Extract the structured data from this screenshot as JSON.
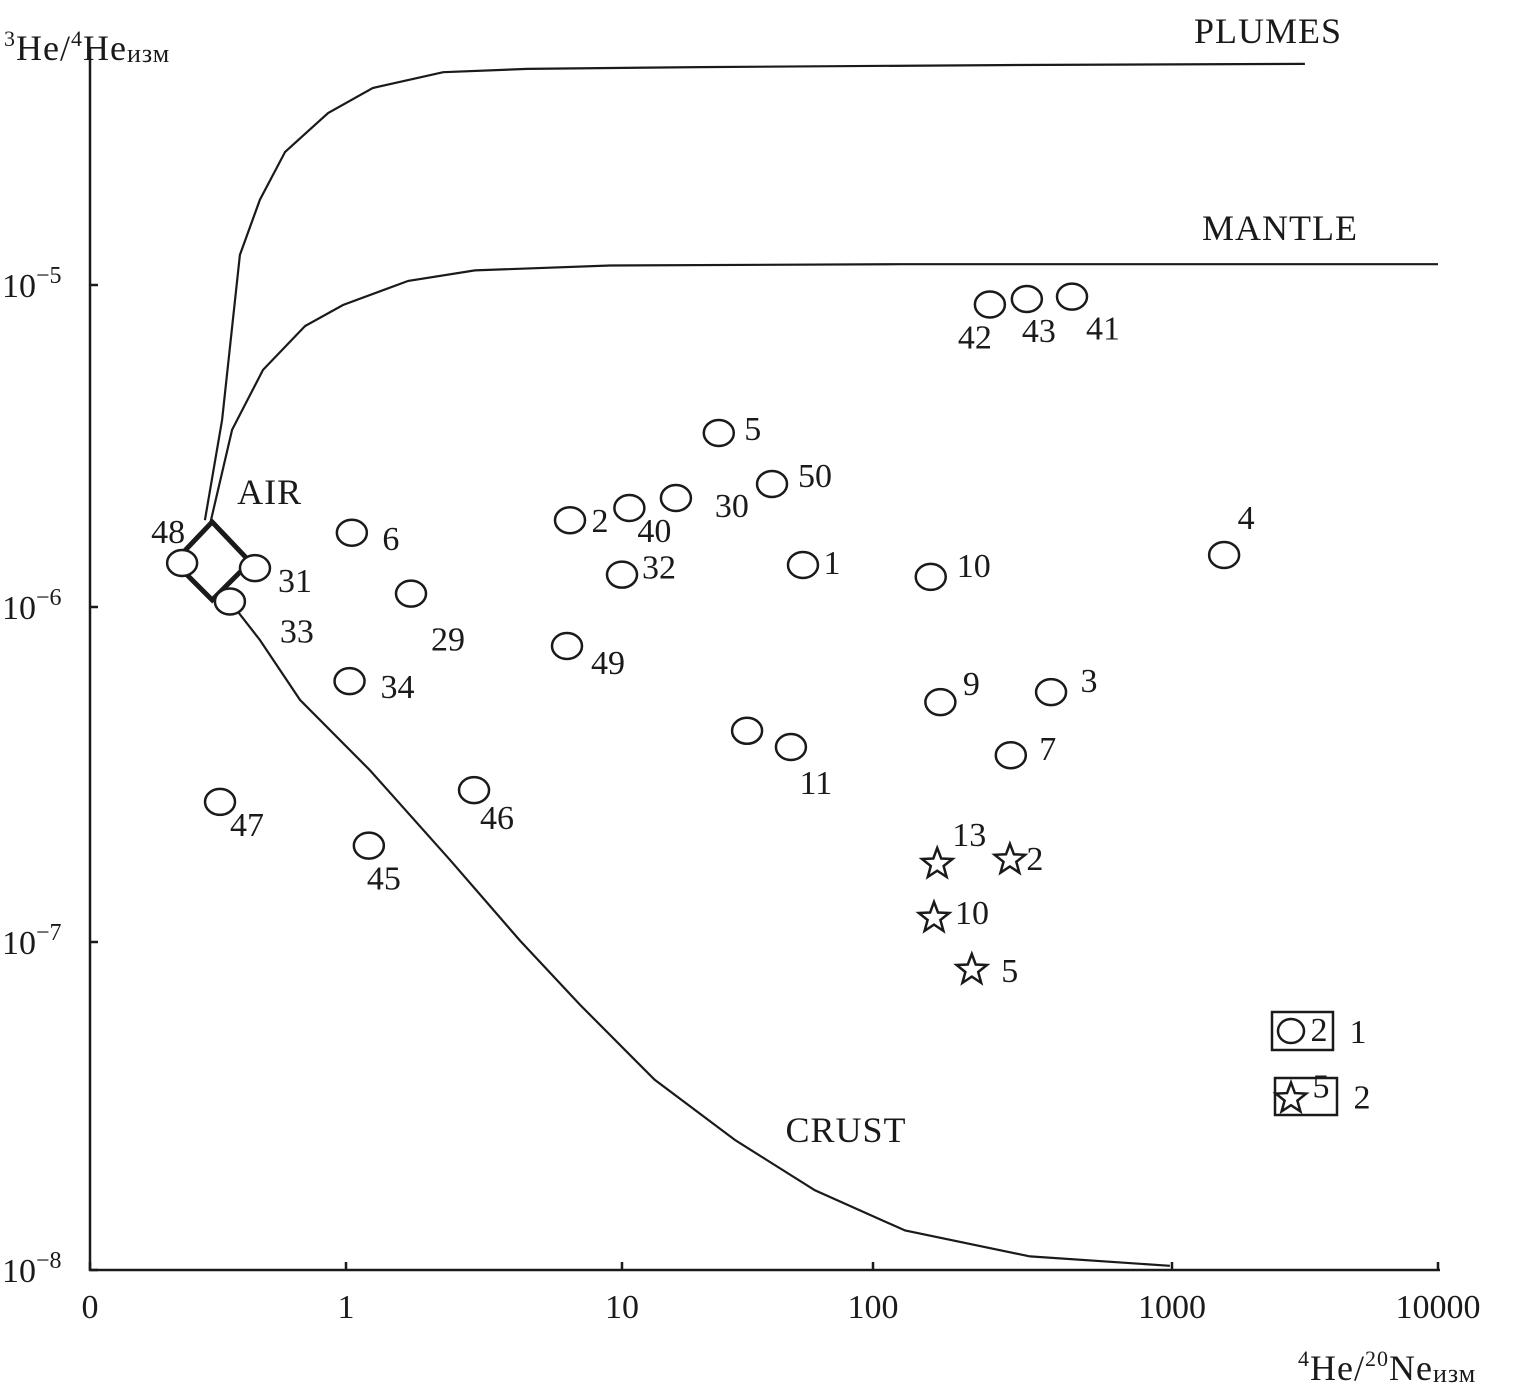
{
  "chart_data": {
    "type": "scatter",
    "title": "",
    "xlabel": {
      "main": "He/",
      "sup1": "4",
      "sup2": "20",
      "main2": "Ne",
      "sub": "изм"
    },
    "ylabel": {
      "sup1": "3",
      "main": "He/",
      "sup2": "4",
      "main2": "He",
      "sub": "изм"
    },
    "x_scale": "log",
    "y_scale": "log",
    "xlim": [
      0.1,
      10000
    ],
    "ylim": [
      1e-08,
      6e-05
    ],
    "x_ticks": [
      {
        "value": 0.1,
        "label": "0"
      },
      {
        "value": 1,
        "label": "1"
      },
      {
        "value": 10,
        "label": "10"
      },
      {
        "value": 100,
        "label": "100"
      },
      {
        "value": 1000,
        "label": "1000"
      },
      {
        "value": 10000,
        "label": "10000"
      }
    ],
    "y_ticks": [
      {
        "value": 1e-05,
        "base": "10",
        "exp": "−5"
      },
      {
        "value": 1e-06,
        "base": "10",
        "exp": "−6"
      },
      {
        "value": 1e-07,
        "base": "10",
        "exp": "−7"
      },
      {
        "value": 1e-08,
        "base": "10",
        "exp": "−8"
      }
    ],
    "grid": false,
    "curves": [
      {
        "name": "PLUMES",
        "points": [
          [
            0.281,
            1.86e-06
          ],
          [
            0.328,
            3.81e-06
          ],
          [
            0.385,
            1.24e-05
          ],
          [
            0.461,
            1.84e-05
          ],
          [
            0.578,
            2.59e-05
          ],
          [
            0.851,
            3.42e-05
          ],
          [
            1.25,
            4.09e-05
          ],
          [
            2.25,
            4.58e-05
          ],
          [
            4.53,
            4.69e-05
          ],
          [
            20.5,
            4.75e-05
          ],
          [
            266,
            4.82e-05
          ],
          [
            3160,
            4.86e-05
          ]
        ]
      },
      {
        "name": "MANTLE",
        "points": [
          [
            0.294,
            1.8e-06
          ],
          [
            0.359,
            3.55e-06
          ],
          [
            0.474,
            5.45e-06
          ],
          [
            0.692,
            7.46e-06
          ],
          [
            0.973,
            8.67e-06
          ],
          [
            1.68,
            1.03e-05
          ],
          [
            2.93,
            1.11e-05
          ],
          [
            9.05,
            1.15e-05
          ],
          [
            123,
            1.16e-05
          ],
          [
            10000,
            1.16e-05
          ]
        ]
      },
      {
        "name": "CRUST",
        "points": [
          [
            0.352,
            1.04e-06
          ],
          [
            0.461,
            7.97e-07
          ],
          [
            0.661,
            5.28e-07
          ],
          [
            1.22,
            3.26e-07
          ],
          [
            2.38,
            1.76e-07
          ],
          [
            4.27,
            1.01e-07
          ],
          [
            7.05,
            6.43e-08
          ],
          [
            13.5,
            3.8e-08
          ],
          [
            28.2,
            2.49e-08
          ],
          [
            58.7,
            1.75e-08
          ],
          [
            128,
            1.32e-08
          ],
          [
            335,
            1.1e-08
          ],
          [
            984,
            1.03e-08
          ]
        ]
      }
    ],
    "air": {
      "label": "AIR",
      "x": 0.3,
      "y": 1.38e-06
    },
    "series": [
      {
        "name": "1",
        "marker": "circle",
        "points": [
          {
            "label": "42",
            "x": 246,
            "y": 8.7e-06
          },
          {
            "label": "43",
            "x": 327,
            "y": 9.05e-06
          },
          {
            "label": "41",
            "x": 463,
            "y": 9.2e-06
          },
          {
            "label": "5",
            "x": 24.3,
            "y": 3.47e-06
          },
          {
            "label": "50",
            "x": 39.6,
            "y": 2.41e-06
          },
          {
            "label": "30",
            "x": 16.4,
            "y": 2.18e-06
          },
          {
            "label": "40",
            "x": 10.7,
            "y": 2.03e-06
          },
          {
            "label": "2",
            "x": 6.48,
            "y": 1.86e-06
          },
          {
            "label": "48",
            "x": 0.229,
            "y": 1.37e-06
          },
          {
            "label": "31",
            "x": 0.441,
            "y": 1.32e-06
          },
          {
            "label": "33",
            "x": 0.352,
            "y": 1.04e-06
          },
          {
            "label": "6",
            "x": 1.05,
            "y": 1.7e-06
          },
          {
            "label": "29",
            "x": 1.72,
            "y": 1.1e-06
          },
          {
            "label": "32",
            "x": 10,
            "y": 1.26e-06
          },
          {
            "label": "1",
            "x": 52.6,
            "y": 1.35e-06
          },
          {
            "label": "10",
            "x": 156,
            "y": 1.24e-06
          },
          {
            "label": "4",
            "x": 1570,
            "y": 1.45e-06
          },
          {
            "label": "49",
            "x": 6.32,
            "y": 7.65e-07
          },
          {
            "label": "34",
            "x": 1.03,
            "y": 6.01e-07
          },
          {
            "label": "9",
            "x": 168,
            "y": 5.2e-07
          },
          {
            "label": "3",
            "x": 394,
            "y": 5.57e-07
          },
          {
            "label": "7",
            "x": 289,
            "y": 3.61e-07
          },
          {
            "label": "",
            "x": 31.5,
            "y": 4.27e-07
          },
          {
            "label": "11",
            "x": 47.1,
            "y": 3.82e-07
          },
          {
            "label": "47",
            "x": 0.322,
            "y": 2.62e-07
          },
          {
            "label": "46",
            "x": 2.91,
            "y": 2.84e-07
          },
          {
            "label": "45",
            "x": 1.21,
            "y": 1.94e-07
          }
        ]
      },
      {
        "name": "2",
        "marker": "star",
        "points": [
          {
            "label": "13",
            "x": 164,
            "y": 1.71e-07
          },
          {
            "label": "2",
            "x": 287,
            "y": 1.76e-07
          },
          {
            "label": "10",
            "x": 160,
            "y": 1.18e-07
          },
          {
            "label": "5",
            "x": 214,
            "y": 8.22e-08
          }
        ]
      }
    ],
    "legend": {
      "placement": "bottom-right",
      "entries": [
        {
          "marker": "circle",
          "sample": "2",
          "label": "1"
        },
        {
          "marker": "star",
          "sample": "5",
          "label": "2"
        }
      ]
    }
  }
}
